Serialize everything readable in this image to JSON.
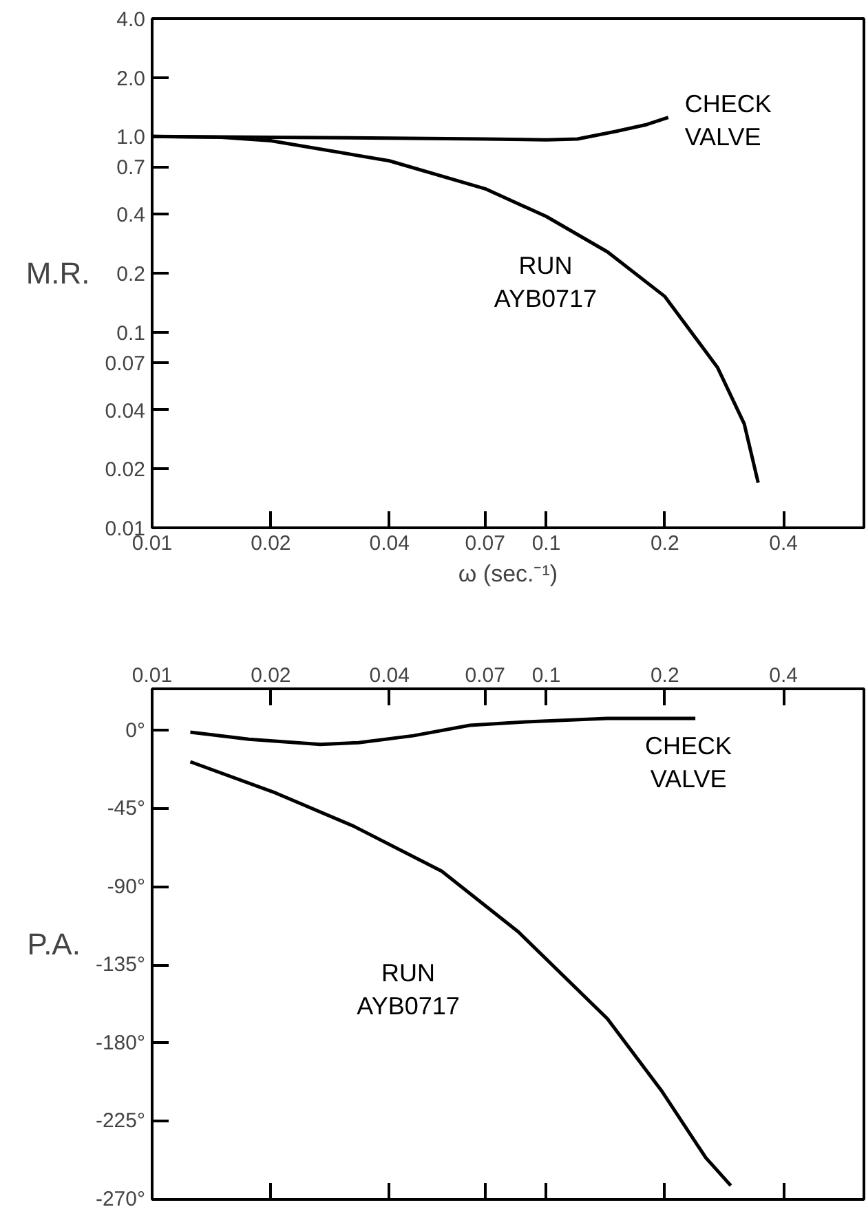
{
  "chart_data": [
    {
      "type": "line",
      "xlabel": "ω (sec.⁻¹)",
      "ylabel": "M.R.",
      "log": "xy",
      "grid": false,
      "line_style": "solid",
      "xlim": [
        0.01,
        0.64
      ],
      "xticks": [
        {
          "value": 0.01,
          "label": "0.01"
        },
        {
          "value": 0.02,
          "label": "0.02"
        },
        {
          "value": 0.04,
          "label": "0.04"
        },
        {
          "value": 0.07,
          "label": "0.07"
        },
        {
          "value": 0.1,
          "label": "0.1"
        },
        {
          "value": 0.2,
          "label": "0.2"
        },
        {
          "value": 0.4,
          "label": "0.4"
        }
      ],
      "ylim": [
        0.01,
        4
      ],
      "yticks": [
        {
          "value": 4,
          "label": "4.0"
        },
        {
          "value": 2,
          "label": "2.0"
        },
        {
          "value": 1,
          "label": "1.0"
        },
        0.7,
        0.4,
        0.2,
        0.1,
        0.07,
        0.04,
        0.02,
        0.01
      ],
      "series": [
        {
          "name": "CHECK VALVE",
          "color": "#000000",
          "x": [
            0.01,
            0.02,
            0.04,
            0.07,
            0.1,
            0.12,
            0.15,
            0.18,
            0.204
          ],
          "values": [
            1.0,
            0.99,
            0.98,
            0.97,
            0.96,
            0.97,
            1.06,
            1.15,
            1.25
          ]
        },
        {
          "name": "RUN AYB0717",
          "color": "#000000",
          "x": [
            0.01,
            0.015,
            0.02,
            0.04,
            0.07,
            0.1,
            0.143,
            0.2,
            0.272,
            0.318,
            0.345
          ],
          "values": [
            1.0,
            0.99,
            0.95,
            0.75,
            0.54,
            0.39,
            0.257,
            0.152,
            0.066,
            0.034,
            0.017
          ]
        }
      ]
    },
    {
      "type": "line",
      "ylabel": "P.A.",
      "log": "x",
      "grid": false,
      "line_style": "solid",
      "xlim": [
        0.01,
        0.64
      ],
      "xticks": [
        {
          "value": 0.01,
          "label": "0.01"
        },
        {
          "value": 0.02,
          "label": "0.02"
        },
        {
          "value": 0.04,
          "label": "0.04"
        },
        {
          "value": 0.07,
          "label": "0.07"
        },
        {
          "value": 0.1,
          "label": "0.1"
        },
        {
          "value": 0.2,
          "label": "0.2"
        },
        {
          "value": 0.4,
          "label": "0.4"
        }
      ],
      "ylim": [
        -270,
        24
      ],
      "yticks": [
        {
          "value": 0,
          "label": "0°"
        },
        {
          "value": -45,
          "label": "-45°"
        },
        {
          "value": -90,
          "label": "-90°"
        },
        {
          "value": -135,
          "label": "-135°"
        },
        {
          "value": -180,
          "label": "-180°"
        },
        {
          "value": -225,
          "label": "-225°"
        },
        {
          "value": -270,
          "label": "-270°"
        }
      ],
      "series": [
        {
          "name": "CHECK VALVE",
          "color": "#000000",
          "x": [
            0.0125,
            0.0176,
            0.0267,
            0.0334,
            0.046,
            0.064,
            0.089,
            0.143,
            0.239
          ],
          "values": [
            -1,
            -5,
            -8,
            -7,
            -3,
            3,
            5,
            7,
            7
          ]
        },
        {
          "name": "RUN AYB0717",
          "color": "#000000",
          "x": [
            0.0125,
            0.0206,
            0.0324,
            0.0543,
            0.085,
            0.143,
            0.197,
            0.254,
            0.294
          ],
          "values": [
            -18,
            -36,
            -55,
            -81,
            -116,
            -166,
            -208,
            -246,
            -262
          ]
        }
      ]
    }
  ]
}
